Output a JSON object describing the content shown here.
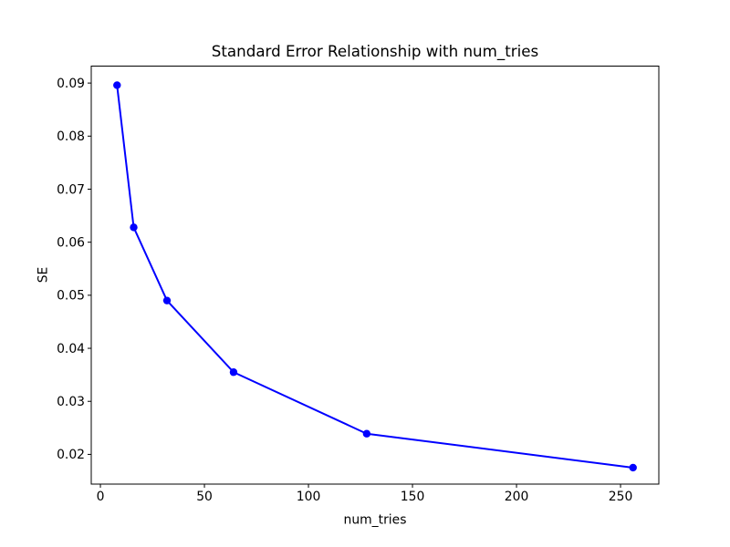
{
  "figure": {
    "background": "#ffffff"
  },
  "chart_data": {
    "type": "line",
    "title": "Standard Error Relationship with num_tries",
    "xlabel": "num_tries",
    "ylabel": "SE",
    "series": [
      {
        "name": "SE",
        "color": "#0000ff",
        "marker": "circle",
        "x": [
          8,
          16,
          32,
          64,
          128,
          256
        ],
        "y": [
          0.0896,
          0.0628,
          0.049,
          0.0355,
          0.0239,
          0.0175
        ]
      }
    ],
    "x_ticks": [
      0,
      50,
      100,
      150,
      200,
      250
    ],
    "x_tick_labels": [
      "0",
      "50",
      "100",
      "150",
      "200",
      "250"
    ],
    "y_ticks": [
      0.02,
      0.03,
      0.04,
      0.05,
      0.06,
      0.07,
      0.08,
      0.09
    ],
    "y_tick_labels": [
      "0.02",
      "0.03",
      "0.04",
      "0.05",
      "0.06",
      "0.07",
      "0.08",
      "0.09"
    ],
    "xlim": [
      -4.4,
      268.4
    ],
    "ylim": [
      0.0144,
      0.0932
    ],
    "grid": false,
    "legend": "none",
    "axis_color": "#000000",
    "text_color": "#000000"
  }
}
